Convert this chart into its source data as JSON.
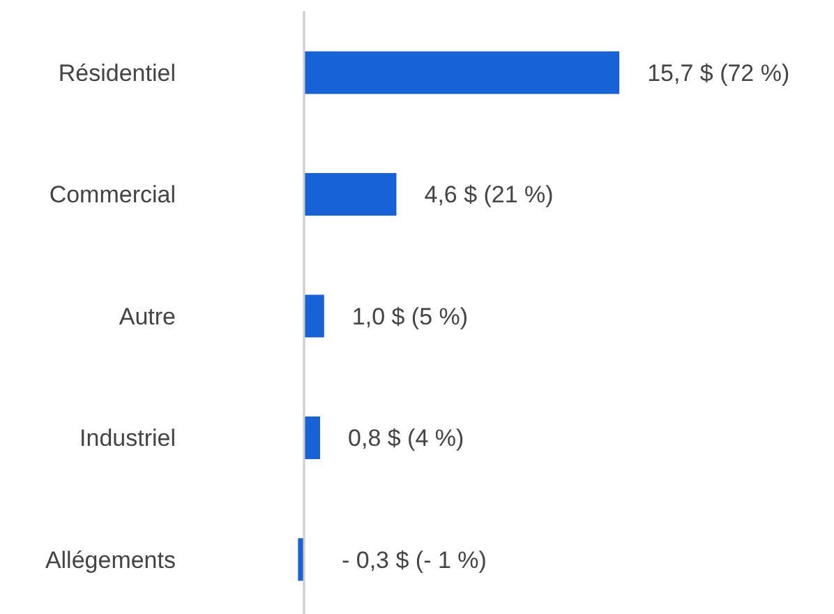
{
  "chart_data": {
    "type": "bar",
    "orientation": "horizontal",
    "categories": [
      "Résidentiel",
      "Commercial",
      "Autre",
      "Industriel",
      "Allégements"
    ],
    "values": [
      15.7,
      4.6,
      1.0,
      0.8,
      -0.3
    ],
    "value_labels": [
      "15,7 $ (72 %)",
      "4,6 $ (21 %)",
      "1,0 $ (5 %)",
      "0,8 $ (4 %)",
      "- 0,3 $ (- 1 %)"
    ],
    "color": "#1662d6"
  }
}
